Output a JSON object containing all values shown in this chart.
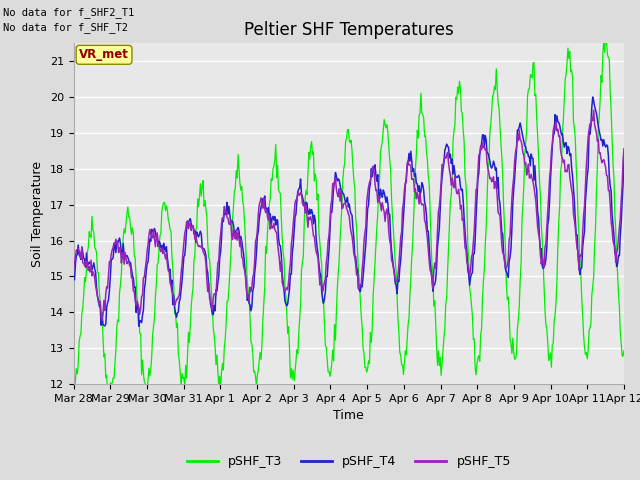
{
  "title": "Peltier SHF Temperatures",
  "xlabel": "Time",
  "ylabel": "Soil Temperature",
  "ylim": [
    12.0,
    21.5
  ],
  "yticks": [
    12.0,
    13.0,
    14.0,
    15.0,
    16.0,
    17.0,
    18.0,
    19.0,
    20.0,
    21.0
  ],
  "no_data_lines": [
    "No data for f_SHF2_T1",
    "No data for f_SHF_T2"
  ],
  "vr_met_label": "VR_met",
  "legend_labels": [
    "pSHF_T3",
    "pSHF_T4",
    "pSHF_T5"
  ],
  "T3_color": "#00EE00",
  "T4_color": "#2222CC",
  "T5_color": "#9922BB",
  "fig_bg": "#DCDCDC",
  "ax_bg": "#E8E8E8",
  "grid_color": "#FFFFFF",
  "xtick_labels": [
    "Mar 28",
    "Mar 29",
    "Mar 30",
    "Mar 31",
    "Apr 1",
    "Apr 2",
    "Apr 3",
    "Apr 4",
    "Apr 5",
    "Apr 6",
    "Apr 7",
    "Apr 8",
    "Apr 9",
    "Apr 10",
    "Apr 11",
    "Apr 12"
  ],
  "num_days": 15,
  "num_points": 600
}
